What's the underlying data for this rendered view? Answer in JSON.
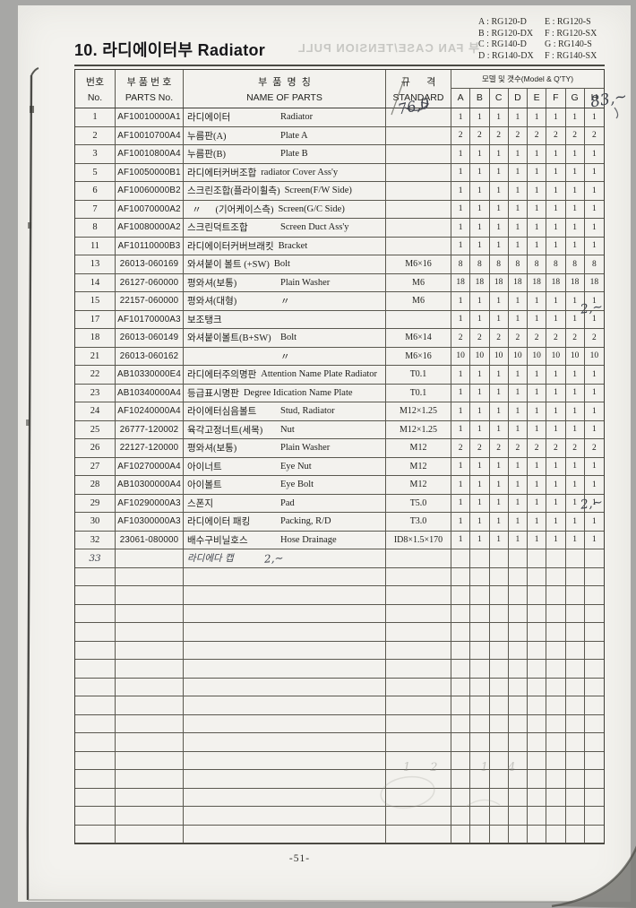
{
  "page": {
    "title": "10. 라디에이터부 Radiator",
    "page_number": "-51-",
    "ghost_text": "부 FAN CASE/TENSION PULL"
  },
  "model_key": {
    "lines": [
      {
        "left": "A : RG120-D",
        "right": "E : RG120-S"
      },
      {
        "left": "B : RG120-DX",
        "right": "F : RG120-SX"
      },
      {
        "left": "C : RG140-D",
        "right": "G : RG140-S"
      },
      {
        "left": "D : RG140-DX",
        "right": "F : RG140-SX"
      }
    ]
  },
  "table": {
    "headers": {
      "no_kr": "번호",
      "no_en": "No.",
      "parts_kr": "부 품 번 호",
      "parts_en": "PARTS No.",
      "name_kr": "부  품  명  칭",
      "name_en": "NAME OF PARTS",
      "std_kr": "규      격",
      "std_en": "STANDARD",
      "qty_group": "모델 및 갯수(Model & Q'TY)",
      "qty_cols": [
        "A",
        "B",
        "C",
        "D",
        "E",
        "F",
        "G",
        "H"
      ]
    },
    "blank_row_count": 15,
    "rows": [
      {
        "no": "1",
        "part": "AF10010000A1",
        "kr": "라디에이터",
        "en": "Radiator",
        "sep": "mid",
        "std": "",
        "qty": [
          "1",
          "1",
          "1",
          "1",
          "1",
          "1",
          "1",
          "1"
        ]
      },
      {
        "no": "2",
        "part": "AF10010700A4",
        "kr": "누름판(A)",
        "en": "Plate A",
        "sep": "mid",
        "std": "",
        "qty": [
          "2",
          "2",
          "2",
          "2",
          "2",
          "2",
          "2",
          "2"
        ]
      },
      {
        "no": "3",
        "part": "AF10010800A4",
        "kr": "누름판(B)",
        "en": "Plate B",
        "sep": "mid",
        "std": "",
        "qty": [
          "1",
          "1",
          "1",
          "1",
          "1",
          "1",
          "1",
          "1"
        ]
      },
      {
        "no": "5",
        "part": "AF10050000B1",
        "kr": "라디에터커버조합",
        "en": "radiator Cover Ass'y",
        "sep": "flow",
        "std": "",
        "qty": [
          "1",
          "1",
          "1",
          "1",
          "1",
          "1",
          "1",
          "1"
        ]
      },
      {
        "no": "6",
        "part": "AF10060000B2",
        "kr": "스크린조합(플라이휠측)",
        "en": "Screen(F/W Side)",
        "sep": "flow",
        "std": "",
        "qty": [
          "1",
          "1",
          "1",
          "1",
          "1",
          "1",
          "1",
          "1"
        ]
      },
      {
        "no": "7",
        "part": "AF10070000A2",
        "kr": "  〃      (기어케이스측)",
        "en": "Screen(G/C Side)",
        "sep": "flow",
        "std": "",
        "qty": [
          "1",
          "1",
          "1",
          "1",
          "1",
          "1",
          "1",
          "1"
        ]
      },
      {
        "no": "8",
        "part": "AF10080000A2",
        "kr": "스크린덕트조합",
        "en": "Screen Duct Ass'y",
        "sep": "mid",
        "std": "",
        "qty": [
          "1",
          "1",
          "1",
          "1",
          "1",
          "1",
          "1",
          "1"
        ]
      },
      {
        "no": "11",
        "part": "AF10110000B3",
        "kr": "라디에이터커버브래킷",
        "en": "Bracket",
        "sep": "flow",
        "std": "",
        "qty": [
          "1",
          "1",
          "1",
          "1",
          "1",
          "1",
          "1",
          "1"
        ]
      },
      {
        "no": "13",
        "part": "26013-060169",
        "kr": "와셔붙이 볼트 (+SW)",
        "en": "Bolt",
        "sep": "flow",
        "std": "M6×16",
        "qty": [
          "8",
          "8",
          "8",
          "8",
          "8",
          "8",
          "8",
          "8"
        ]
      },
      {
        "no": "14",
        "part": "26127-060000",
        "kr": "평와셔(보통)",
        "en": "Plain Washer",
        "sep": "mid",
        "std": "M6",
        "qty": [
          "18",
          "18",
          "18",
          "18",
          "18",
          "18",
          "18",
          "18"
        ]
      },
      {
        "no": "15",
        "part": "22157-060000",
        "kr": "평와셔(대형)",
        "en": "〃",
        "sep": "mid",
        "std": "M6",
        "qty": [
          "1",
          "1",
          "1",
          "1",
          "1",
          "1",
          "1",
          "1"
        ]
      },
      {
        "no": "17",
        "part": "AF10170000A3",
        "kr": "보조탱크",
        "en": "",
        "sep": "",
        "std": "",
        "qty": [
          "1",
          "1",
          "1",
          "1",
          "1",
          "1",
          "1",
          "1"
        ]
      },
      {
        "no": "18",
        "part": "26013-060149",
        "kr": "와셔붙이볼트(B+SW)",
        "en": "Bolt",
        "sep": "mid",
        "std": "M6×14",
        "qty": [
          "2",
          "2",
          "2",
          "2",
          "2",
          "2",
          "2",
          "2"
        ]
      },
      {
        "no": "21",
        "part": "26013-060162",
        "kr": "",
        "en": "〃",
        "sep": "mid",
        "std": "M6×16",
        "qty": [
          "10",
          "10",
          "10",
          "10",
          "10",
          "10",
          "10",
          "10"
        ]
      },
      {
        "no": "22",
        "part": "AB10330000E4",
        "kr": "라디에터주의명판",
        "en": "Attention Name Plate Radiator",
        "sep": "flow",
        "std": "T0.1",
        "qty": [
          "1",
          "1",
          "1",
          "1",
          "1",
          "1",
          "1",
          "1"
        ]
      },
      {
        "no": "23",
        "part": "AB10340000A4",
        "kr": "등급표시명판",
        "en": "Degree Idication Name Plate",
        "sep": "flow",
        "std": "T0.1",
        "qty": [
          "1",
          "1",
          "1",
          "1",
          "1",
          "1",
          "1",
          "1"
        ]
      },
      {
        "no": "24",
        "part": "AF10240000A4",
        "kr": "라이에터심음볼트",
        "en": "Stud, Radiator",
        "sep": "mid",
        "std": "M12×1.25",
        "qty": [
          "1",
          "1",
          "1",
          "1",
          "1",
          "1",
          "1",
          "1"
        ]
      },
      {
        "no": "25",
        "part": "26777-120002",
        "kr": "육각고정너트(세목)",
        "en": "Nut",
        "sep": "mid",
        "std": "M12×1.25",
        "qty": [
          "1",
          "1",
          "1",
          "1",
          "1",
          "1",
          "1",
          "1"
        ]
      },
      {
        "no": "26",
        "part": "22127-120000",
        "kr": "평와셔(보통)",
        "en": "Plain Washer",
        "sep": "mid",
        "std": "M12",
        "qty": [
          "2",
          "2",
          "2",
          "2",
          "2",
          "2",
          "2",
          "2"
        ]
      },
      {
        "no": "27",
        "part": "AF10270000A4",
        "kr": "아이너트",
        "en": "Eye Nut",
        "sep": "mid",
        "std": "M12",
        "qty": [
          "1",
          "1",
          "1",
          "1",
          "1",
          "1",
          "1",
          "1"
        ]
      },
      {
        "no": "28",
        "part": "AB10300000A4",
        "kr": "아이볼트",
        "en": "Eye Bolt",
        "sep": "mid",
        "std": "M12",
        "qty": [
          "1",
          "1",
          "1",
          "1",
          "1",
          "1",
          "1",
          "1"
        ]
      },
      {
        "no": "29",
        "part": "AF10290000A3",
        "kr": "스폰지",
        "en": "Pad",
        "sep": "mid",
        "std": "T5.0",
        "qty": [
          "1",
          "1",
          "1",
          "1",
          "1",
          "1",
          "1",
          "1"
        ]
      },
      {
        "no": "30",
        "part": "AF10300000A3",
        "kr": "라디에이터 패킹",
        "en": "Packing, R/D",
        "sep": "mid",
        "std": "T3.0",
        "qty": [
          "1",
          "1",
          "1",
          "1",
          "1",
          "1",
          "1",
          "1"
        ]
      },
      {
        "no": "32",
        "part": "23061-080000",
        "kr": "배수구비닐호스",
        "en": "Hose Drainage",
        "sep": "mid",
        "std": "ID8×1.5×170",
        "qty": [
          "1",
          "1",
          "1",
          "1",
          "1",
          "1",
          "1",
          "1"
        ]
      },
      {
        "no": "33",
        "part": "",
        "kr": "라디에다 캡",
        "en": "",
        "sep": "",
        "std": "",
        "qty": [
          "",
          "",
          "",
          "",
          "",
          "",
          "",
          ""
        ],
        "hand": true,
        "extra": "2,∼"
      }
    ]
  },
  "annotations": {
    "row1_standard": "76,0",
    "row1_margin": "83,∼",
    "row17_margin": "2,∼",
    "row30_margin": "2,∼",
    "pencil_note": "12 14"
  },
  "colors": {
    "paper": "#f3f2ee",
    "frame": "#a7a7a5",
    "rule": "#5a584f",
    "ink": "#1d1d1a",
    "handwriting": "#3e424b"
  }
}
